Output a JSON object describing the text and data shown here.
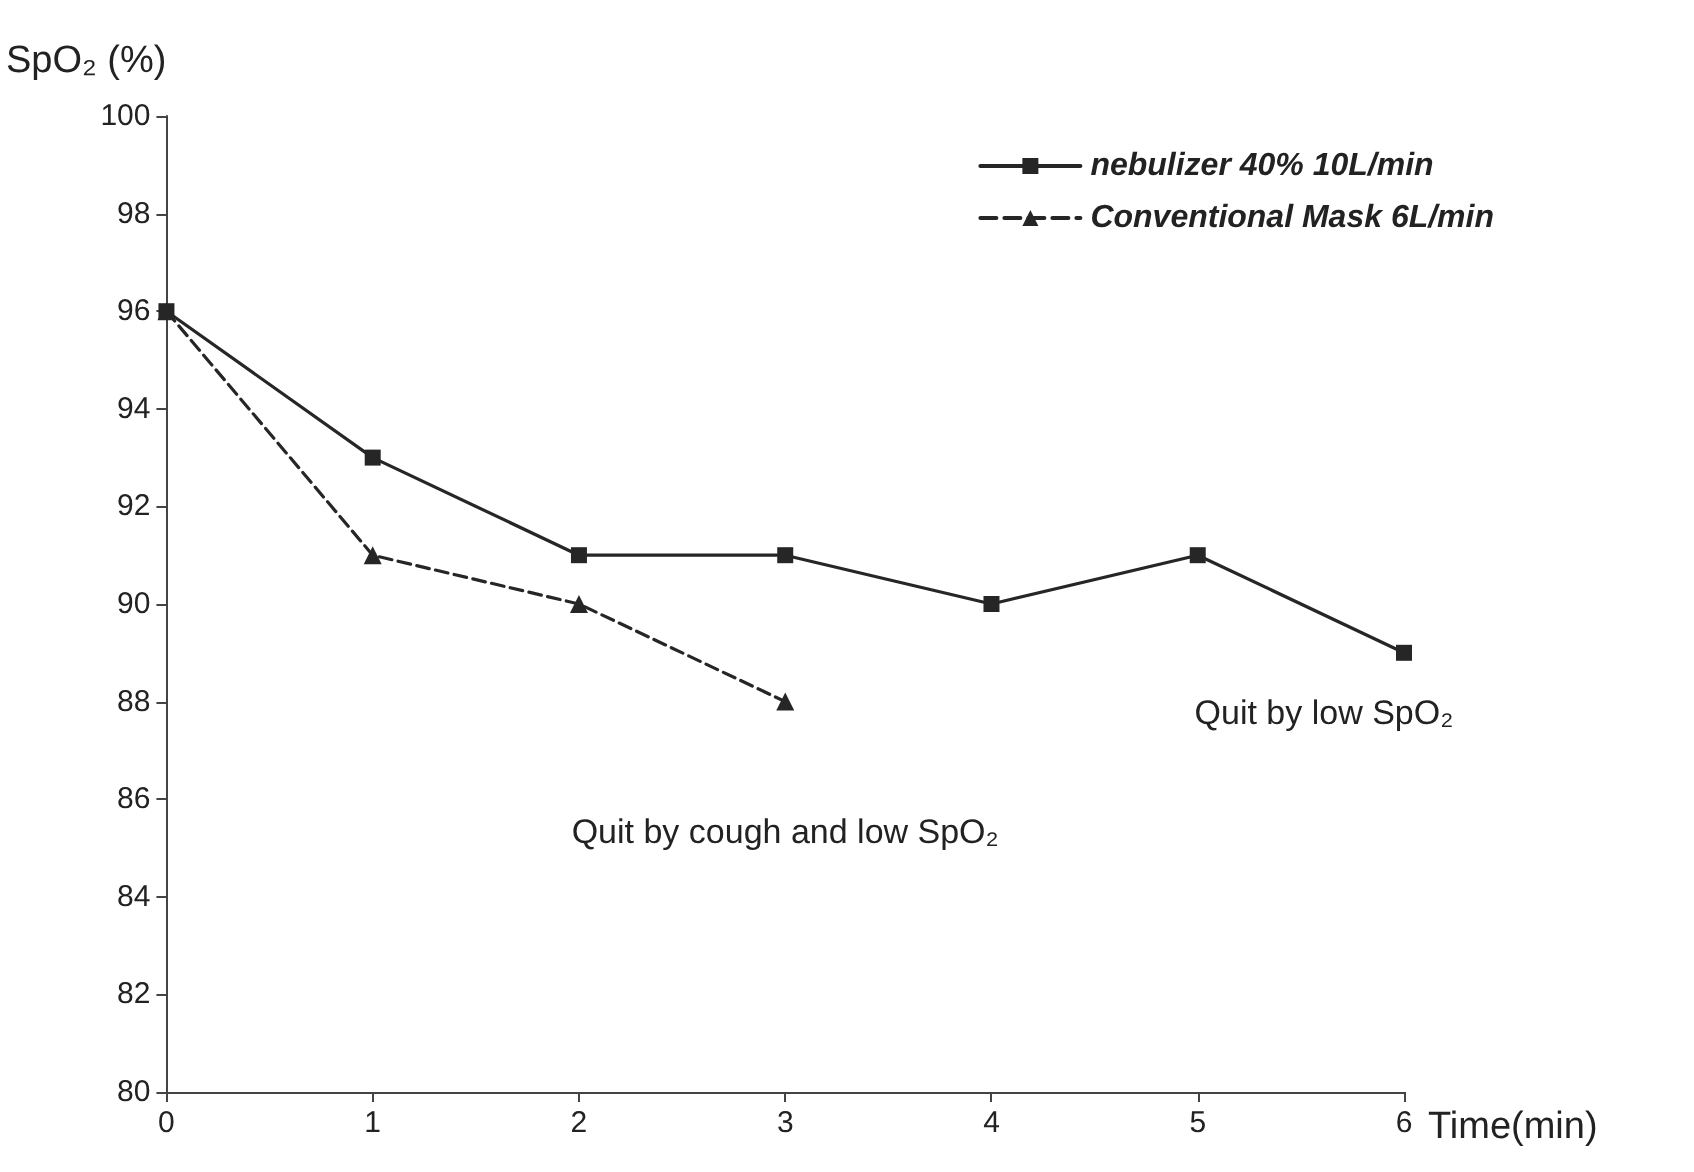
{
  "chart_data": {
    "type": "line",
    "ylabel": "SpO₂ (%)",
    "xlabel": "Time(min)",
    "xlim": [
      0,
      6
    ],
    "xticks": [
      0,
      1,
      2,
      3,
      4,
      5,
      6
    ],
    "ylim": [
      80,
      100
    ],
    "yticks": [
      80,
      82,
      84,
      86,
      88,
      90,
      92,
      94,
      96,
      98,
      100
    ],
    "grid": false,
    "legend": "top right",
    "series": [
      {
        "name": "nebulizer 40% 10L/min",
        "color": "#262626",
        "marker": "square",
        "line_style": "solid",
        "x": [
          0,
          1,
          2,
          3,
          4,
          5,
          6
        ],
        "values": [
          96,
          93,
          91,
          91,
          90,
          91,
          89
        ]
      },
      {
        "name": "Conventional Mask 6L/min",
        "color": "#262626",
        "marker": "triangle",
        "line_style": "dashed",
        "x": [
          0,
          1,
          2,
          3
        ],
        "values": [
          96,
          91,
          90,
          88
        ]
      }
    ],
    "annotations": [
      "Quit by low SpO₂",
      "Quit by cough and low SpO₂"
    ]
  }
}
